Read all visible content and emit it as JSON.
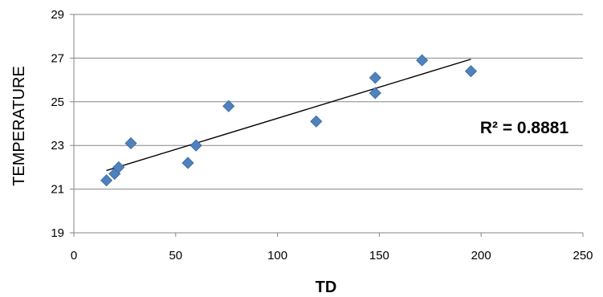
{
  "chart_data": {
    "type": "scatter",
    "title": "",
    "xlabel": "TD",
    "ylabel": "TEMPERATURE",
    "xlim": [
      0,
      250
    ],
    "ylim": [
      19,
      29
    ],
    "x_ticks": [
      "0",
      "50",
      "100",
      "150",
      "200",
      "250"
    ],
    "y_ticks": [
      "19",
      "21",
      "23",
      "25",
      "27",
      "29"
    ],
    "grid": true,
    "series": [
      {
        "marker": "diamond",
        "color": "#4F81BD",
        "points": [
          {
            "x": 16,
            "y": 21.4
          },
          {
            "x": 20,
            "y": 21.7
          },
          {
            "x": 22,
            "y": 22.0
          },
          {
            "x": 28,
            "y": 23.1
          },
          {
            "x": 56,
            "y": 22.2
          },
          {
            "x": 60,
            "y": 23.0
          },
          {
            "x": 76,
            "y": 24.8
          },
          {
            "x": 119,
            "y": 24.1
          },
          {
            "x": 148,
            "y": 26.1
          },
          {
            "x": 148,
            "y": 25.4
          },
          {
            "x": 171,
            "y": 26.9
          },
          {
            "x": 195,
            "y": 26.4
          }
        ]
      }
    ],
    "trendline": {
      "type": "linear",
      "x_start": 16,
      "y_start": 21.85,
      "x_end": 195,
      "y_end": 26.95,
      "annotation": "R² = 0.8881"
    }
  }
}
